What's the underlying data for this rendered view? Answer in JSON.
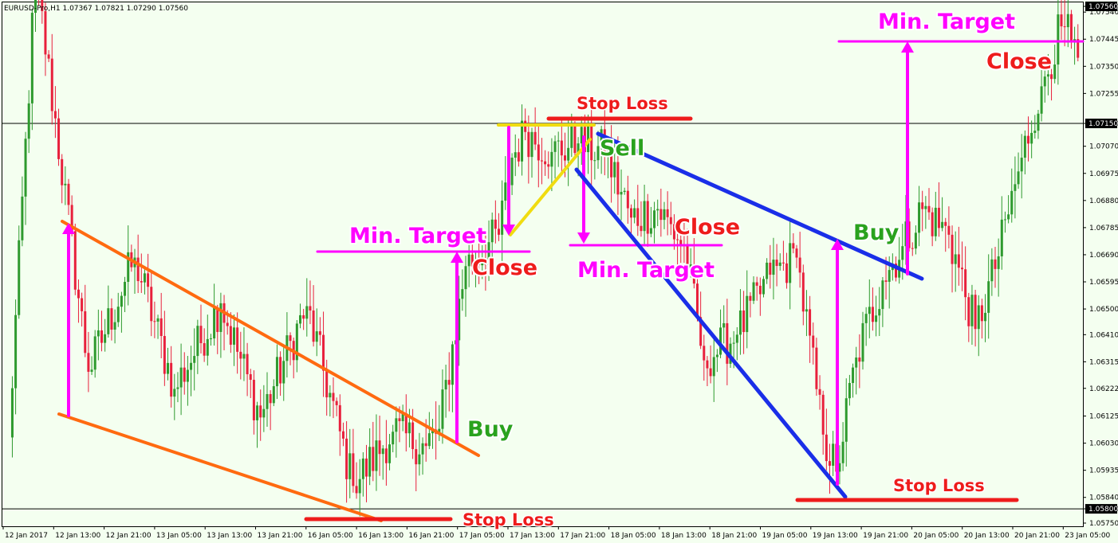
{
  "symbol_info": "EURUSD-Pro,H1  1.07367 1.07821 1.07290 1.07560",
  "colors": {
    "background": "#f4fff0",
    "bull": "#2e9a2e",
    "bear": "#e8203c",
    "magenta": "#ff00ff",
    "orange": "#ff6a10",
    "blue": "#1a2ee8",
    "yellow": "#f0dc10",
    "red": "#ee1c1c",
    "green_text": "#2aa21e"
  },
  "chart_data": {
    "type": "candlestick",
    "title": "EURUSD-Pro,H1",
    "ohlc_header": {
      "open": 1.07367,
      "high": 1.07821,
      "low": 1.0729,
      "close": 1.0756
    },
    "ylim": [
      1.0575,
      1.0756
    ],
    "y_ticks": [
      1.0756,
      1.0754,
      1.07445,
      1.0735,
      1.07255,
      1.0715,
      1.0707,
      1.06975,
      1.0688,
      1.06785,
      1.0669,
      1.06595,
      1.065,
      1.0641,
      1.06315,
      1.06222,
      1.06125,
      1.0603,
      1.05935,
      1.0584,
      1.058,
      1.0575
    ],
    "x_ticks": [
      "12 Jan 2017",
      "12 Jan 13:00",
      "12 Jan 21:00",
      "13 Jan 05:00",
      "13 Jan 13:00",
      "13 Jan 21:00",
      "16 Jan 05:00",
      "16 Jan 13:00",
      "16 Jan 21:00",
      "17 Jan 05:00",
      "17 Jan 13:00",
      "17 Jan 21:00",
      "18 Jan 05:00",
      "18 Jan 13:00",
      "18 Jan 21:00",
      "19 Jan 05:00",
      "19 Jan 13:00",
      "19 Jan 21:00",
      "20 Jan 05:00",
      "20 Jan 13:00",
      "20 Jan 21:00",
      "23 Jan 05:00"
    ],
    "horizontal_levels": [
      1.0715,
      1.058
    ],
    "highlighted_prices": [
      1.0756,
      1.0715,
      1.058
    ],
    "grid": false,
    "key_points": [
      {
        "x": 2,
        "y": 1.0605
      },
      {
        "x": 10,
        "y": 1.0768
      },
      {
        "x": 26,
        "y": 1.0628
      },
      {
        "x": 40,
        "y": 1.0668
      },
      {
        "x": 52,
        "y": 1.0622
      },
      {
        "x": 66,
        "y": 1.0652
      },
      {
        "x": 78,
        "y": 1.0612
      },
      {
        "x": 92,
        "y": 1.0651
      },
      {
        "x": 106,
        "y": 1.0588
      },
      {
        "x": 118,
        "y": 1.0607
      },
      {
        "x": 128,
        "y": 1.0602
      },
      {
        "x": 132,
        "y": 1.0608
      },
      {
        "x": 140,
        "y": 1.0665
      },
      {
        "x": 150,
        "y": 1.0676
      },
      {
        "x": 154,
        "y": 1.0703
      },
      {
        "x": 158,
        "y": 1.0712
      },
      {
        "x": 166,
        "y": 1.0705
      },
      {
        "x": 174,
        "y": 1.0708
      },
      {
        "x": 182,
        "y": 1.0705
      },
      {
        "x": 190,
        "y": 1.0682
      },
      {
        "x": 198,
        "y": 1.0685
      },
      {
        "x": 206,
        "y": 1.0672
      },
      {
        "x": 212,
        "y": 1.0632
      },
      {
        "x": 222,
        "y": 1.0641
      },
      {
        "x": 232,
        "y": 1.0662
      },
      {
        "x": 240,
        "y": 1.0668
      },
      {
        "x": 248,
        "y": 1.0606
      },
      {
        "x": 252,
        "y": 1.0593
      },
      {
        "x": 258,
        "y": 1.0633
      },
      {
        "x": 266,
        "y": 1.066
      },
      {
        "x": 272,
        "y": 1.0672
      },
      {
        "x": 278,
        "y": 1.0685
      },
      {
        "x": 286,
        "y": 1.0676
      },
      {
        "x": 294,
        "y": 1.0643
      },
      {
        "x": 300,
        "y": 1.0664
      },
      {
        "x": 308,
        "y": 1.0703
      },
      {
        "x": 314,
        "y": 1.0728
      },
      {
        "x": 320,
        "y": 1.0749
      },
      {
        "x": 323,
        "y": 1.0744
      },
      {
        "x": 325,
        "y": 1.0738
      }
    ]
  },
  "annotations": {
    "buy1": "Buy",
    "target1": "Min. Target",
    "close1": "Close",
    "stop1": "Stop Loss",
    "stop2": "Stop Loss",
    "sell": "Sell",
    "target2": "Min. Target",
    "close2": "Close",
    "buy3": "Buy",
    "target3": "Min. Target",
    "close3": "Close",
    "stop3": "Stop Loss"
  }
}
